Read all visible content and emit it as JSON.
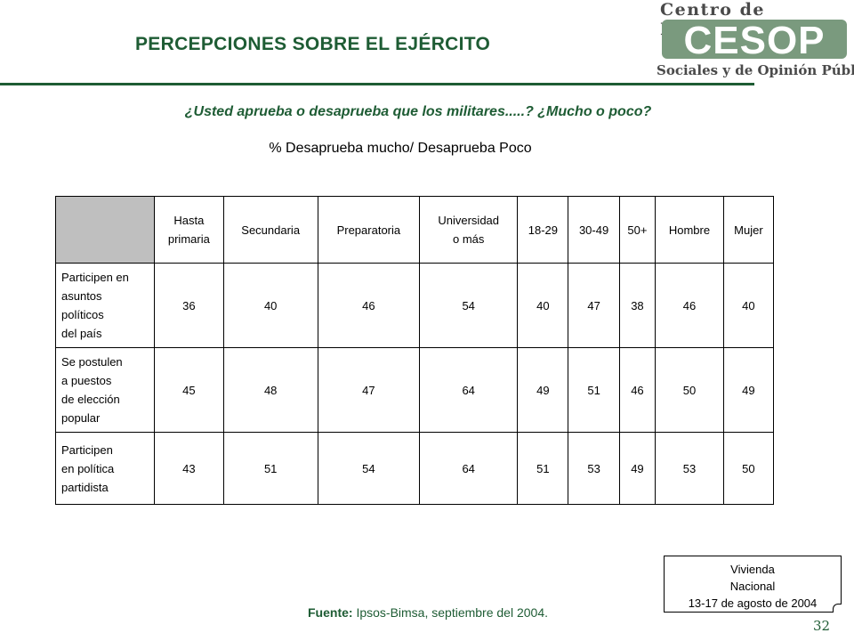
{
  "header": {
    "title": "PERCEPCIONES SOBRE EL EJÉRCITO",
    "logo": {
      "top_text": "Centro de Estudios",
      "acronym": "CESOP",
      "bottom_text": "Sociales y de Opinión Pública",
      "color_green": "#7a9a7e",
      "color_gray": "#4a4a4a"
    }
  },
  "question": "¿Usted aprueba o desaprueba que los militares.....? ¿Mucho o poco?",
  "subtitle": "% Desaprueba mucho/ Desaprueba Poco",
  "table": {
    "columns": [
      "Hasta\nprimaria",
      "Secundaria",
      "Preparatoria",
      "Universidad\no más",
      "18-29",
      "30-49",
      "50+",
      "Hombre",
      "Mujer"
    ],
    "rows": [
      {
        "label": "Participen en\nasuntos\npolíticos\ndel país",
        "values": [
          "36",
          "40",
          "46",
          "54",
          "40",
          "47",
          "38",
          "46",
          "40"
        ]
      },
      {
        "label": "Se postulen\na puestos\nde elección\n popular",
        "values": [
          "45",
          "48",
          "47",
          "64",
          "49",
          "51",
          "46",
          "50",
          "49"
        ]
      },
      {
        "label": "Participen\nen política\npartidista",
        "values": [
          "43",
          "51",
          "54",
          "64",
          "51",
          "53",
          "49",
          "53",
          "50"
        ]
      }
    ]
  },
  "note_box": {
    "line1": "Vivienda",
    "line2": "Nacional",
    "line3": "13-17 de agosto de 2004"
  },
  "source": {
    "label": "Fuente:",
    "text": " Ipsos-Bimsa, septiembre del 2004."
  },
  "page_number": "32",
  "colors": {
    "accent": "#1e5c34",
    "header_cell": "#bfbfbf"
  }
}
